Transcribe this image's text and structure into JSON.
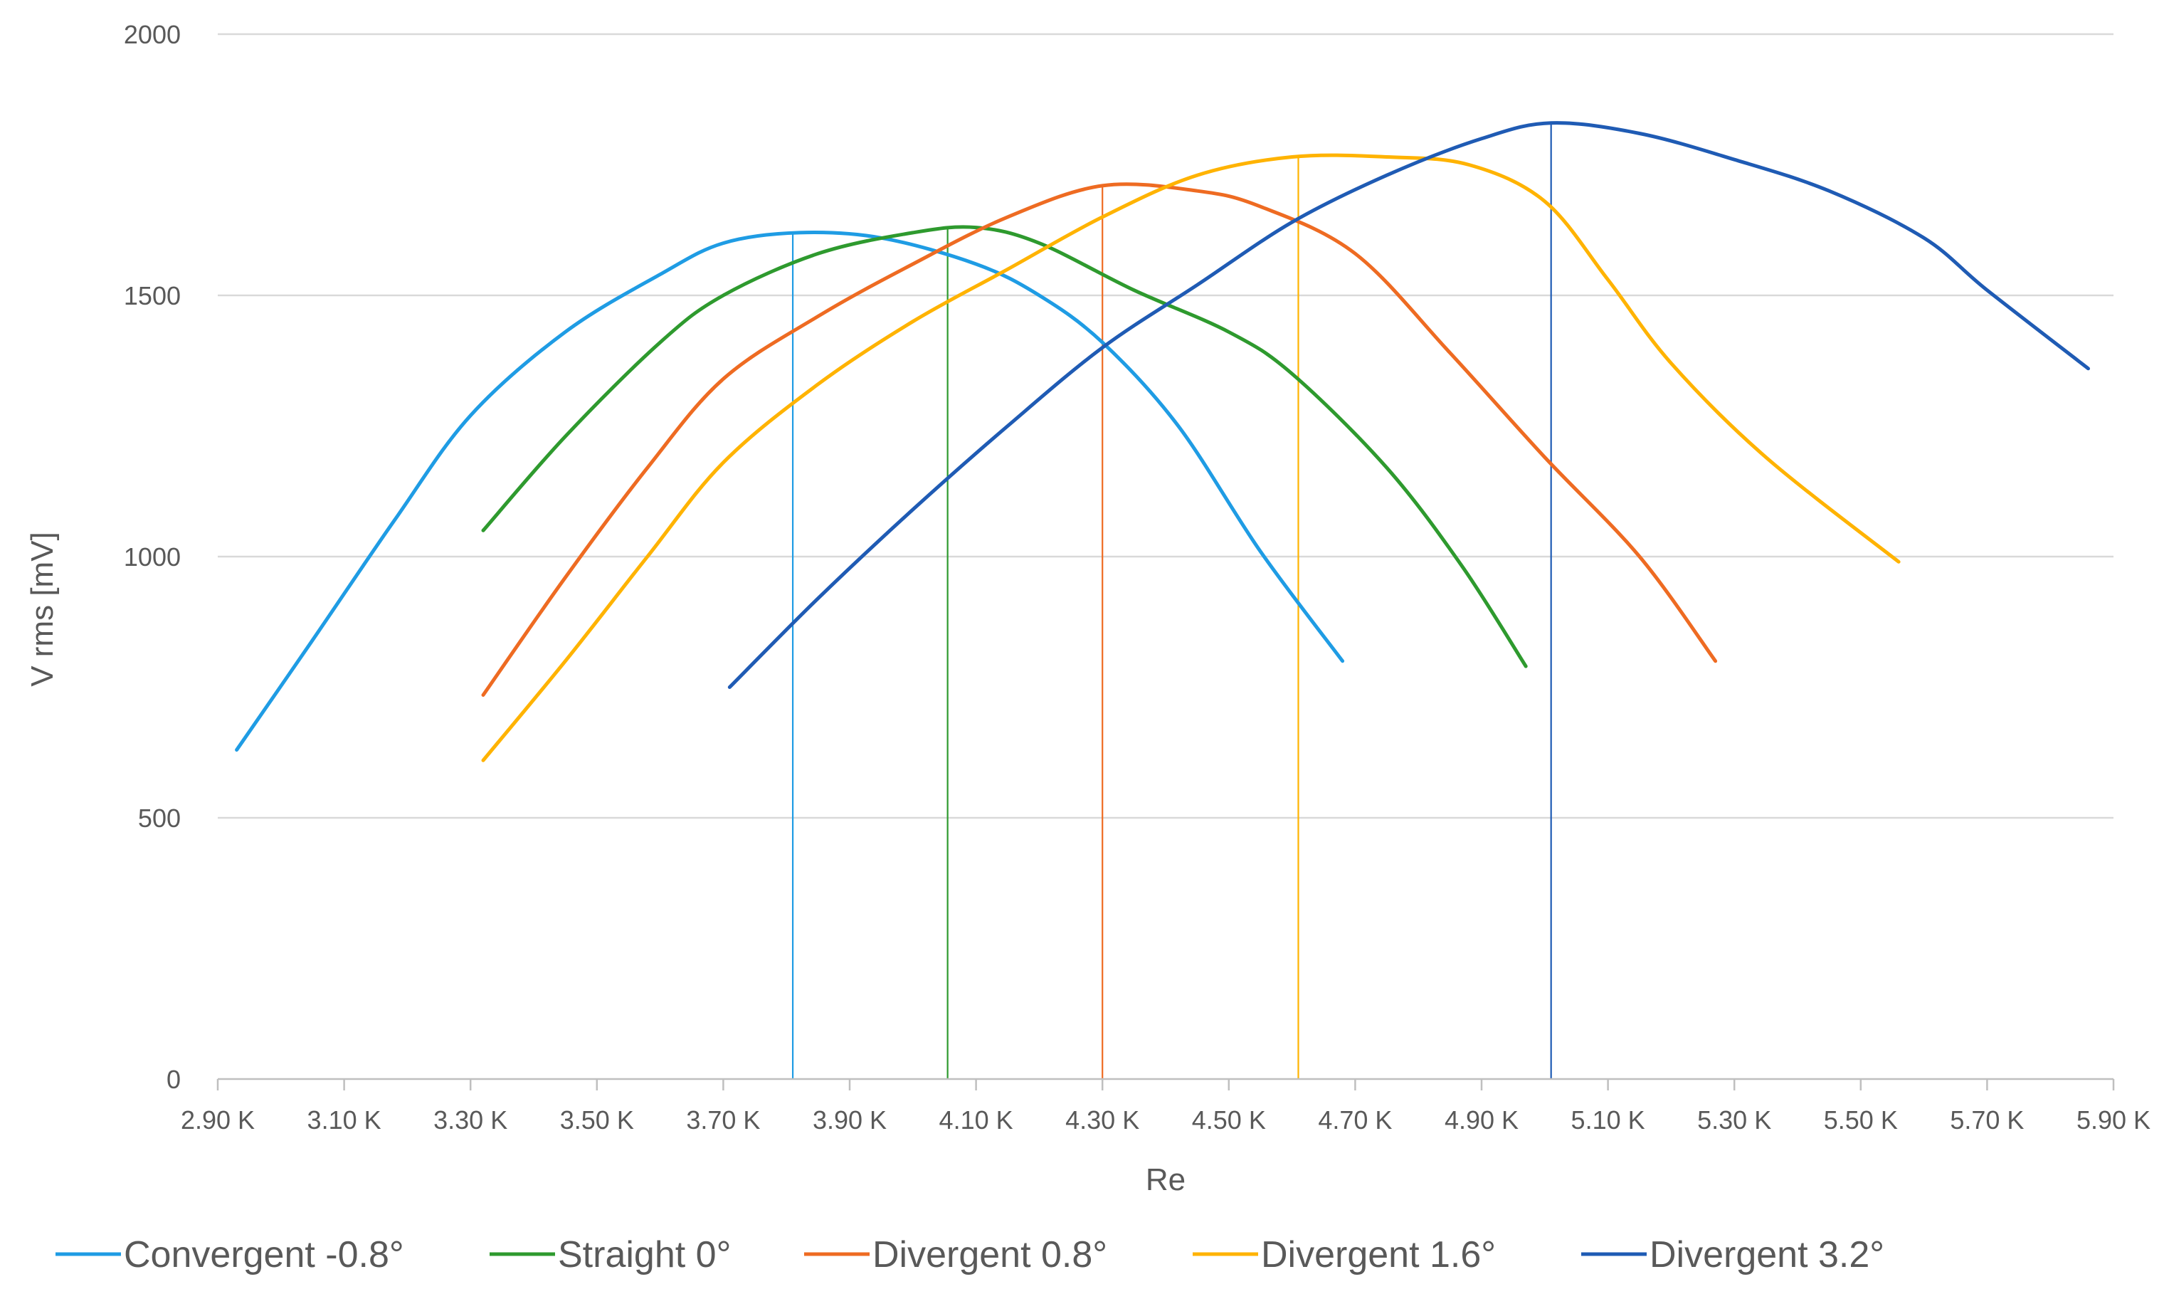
{
  "chart_data": {
    "type": "line",
    "title": "",
    "xlabel": "Re",
    "ylabel": "V rms [mV]",
    "xlim": [
      2900,
      5900
    ],
    "ylim": [
      0,
      2000
    ],
    "grid": "horizontal",
    "legend_position": "bottom",
    "x_ticks": [
      {
        "value": 2900,
        "label": "2.90  K"
      },
      {
        "value": 3100,
        "label": "3.10  K"
      },
      {
        "value": 3300,
        "label": "3.30  K"
      },
      {
        "value": 3500,
        "label": "3.50  K"
      },
      {
        "value": 3700,
        "label": "3.70  K"
      },
      {
        "value": 3900,
        "label": "3.90  K"
      },
      {
        "value": 4100,
        "label": "4.10  K"
      },
      {
        "value": 4300,
        "label": "4.30  K"
      },
      {
        "value": 4500,
        "label": "4.50  K"
      },
      {
        "value": 4700,
        "label": "4.70  K"
      },
      {
        "value": 4900,
        "label": "4.90  K"
      },
      {
        "value": 5100,
        "label": "5.10  K"
      },
      {
        "value": 5300,
        "label": "5.30  K"
      },
      {
        "value": 5500,
        "label": "5.50  K"
      },
      {
        "value": 5700,
        "label": "5.70  K"
      },
      {
        "value": 5900,
        "label": "5.90  K"
      }
    ],
    "y_ticks": [
      {
        "value": 0,
        "label": "0"
      },
      {
        "value": 500,
        "label": "500"
      },
      {
        "value": 1000,
        "label": "1000"
      },
      {
        "value": 1500,
        "label": "1500"
      },
      {
        "value": 2000,
        "label": "2000"
      }
    ],
    "series": [
      {
        "name": "Convergent -0.8°",
        "color": "#1f9ce4",
        "peak_re": 3810,
        "points": [
          [
            2930,
            630
          ],
          [
            3050,
            840
          ],
          [
            3180,
            1070
          ],
          [
            3300,
            1270
          ],
          [
            3450,
            1430
          ],
          [
            3600,
            1540
          ],
          [
            3700,
            1600
          ],
          [
            3820,
            1620
          ],
          [
            3950,
            1610
          ],
          [
            4100,
            1560
          ],
          [
            4200,
            1500
          ],
          [
            4300,
            1410
          ],
          [
            4420,
            1250
          ],
          [
            4550,
            1010
          ],
          [
            4680,
            800
          ]
        ]
      },
      {
        "name": "Straight 0°",
        "color": "#2e9a2e",
        "peak_re": 4055,
        "points": [
          [
            3320,
            1050
          ],
          [
            3450,
            1230
          ],
          [
            3600,
            1410
          ],
          [
            3700,
            1500
          ],
          [
            3850,
            1580
          ],
          [
            4000,
            1620
          ],
          [
            4100,
            1630
          ],
          [
            4200,
            1600
          ],
          [
            4350,
            1510
          ],
          [
            4500,
            1430
          ],
          [
            4600,
            1350
          ],
          [
            4750,
            1170
          ],
          [
            4870,
            980
          ],
          [
            4970,
            790
          ]
        ]
      },
      {
        "name": "Divergent 0.8°",
        "color": "#ee6b22",
        "peak_re": 4300,
        "points": [
          [
            3320,
            735
          ],
          [
            3450,
            960
          ],
          [
            3580,
            1170
          ],
          [
            3700,
            1340
          ],
          [
            3850,
            1460
          ],
          [
            4000,
            1560
          ],
          [
            4150,
            1650
          ],
          [
            4300,
            1710
          ],
          [
            4450,
            1700
          ],
          [
            4550,
            1670
          ],
          [
            4700,
            1580
          ],
          [
            4850,
            1390
          ],
          [
            5000,
            1190
          ],
          [
            5150,
            1000
          ],
          [
            5270,
            800
          ]
        ]
      },
      {
        "name": "Divergent 1.6°",
        "color": "#ffb300",
        "peak_re": 4610,
        "points": [
          [
            3320,
            610
          ],
          [
            3450,
            800
          ],
          [
            3580,
            1000
          ],
          [
            3700,
            1180
          ],
          [
            3850,
            1330
          ],
          [
            4000,
            1450
          ],
          [
            4150,
            1550
          ],
          [
            4300,
            1650
          ],
          [
            4450,
            1730
          ],
          [
            4600,
            1765
          ],
          [
            4750,
            1765
          ],
          [
            4880,
            1750
          ],
          [
            5000,
            1680
          ],
          [
            5100,
            1530
          ],
          [
            5200,
            1370
          ],
          [
            5350,
            1190
          ],
          [
            5560,
            990
          ]
        ]
      },
      {
        "name": "Divergent 3.2°",
        "color": "#1f5bb4",
        "peak_re": 5010,
        "points": [
          [
            3710,
            750
          ],
          [
            3850,
            920
          ],
          [
            4000,
            1090
          ],
          [
            4150,
            1250
          ],
          [
            4300,
            1400
          ],
          [
            4450,
            1520
          ],
          [
            4600,
            1640
          ],
          [
            4750,
            1730
          ],
          [
            4900,
            1800
          ],
          [
            5010,
            1830
          ],
          [
            5150,
            1810
          ],
          [
            5300,
            1760
          ],
          [
            5450,
            1700
          ],
          [
            5600,
            1610
          ],
          [
            5700,
            1510
          ],
          [
            5860,
            1360
          ]
        ]
      }
    ]
  }
}
